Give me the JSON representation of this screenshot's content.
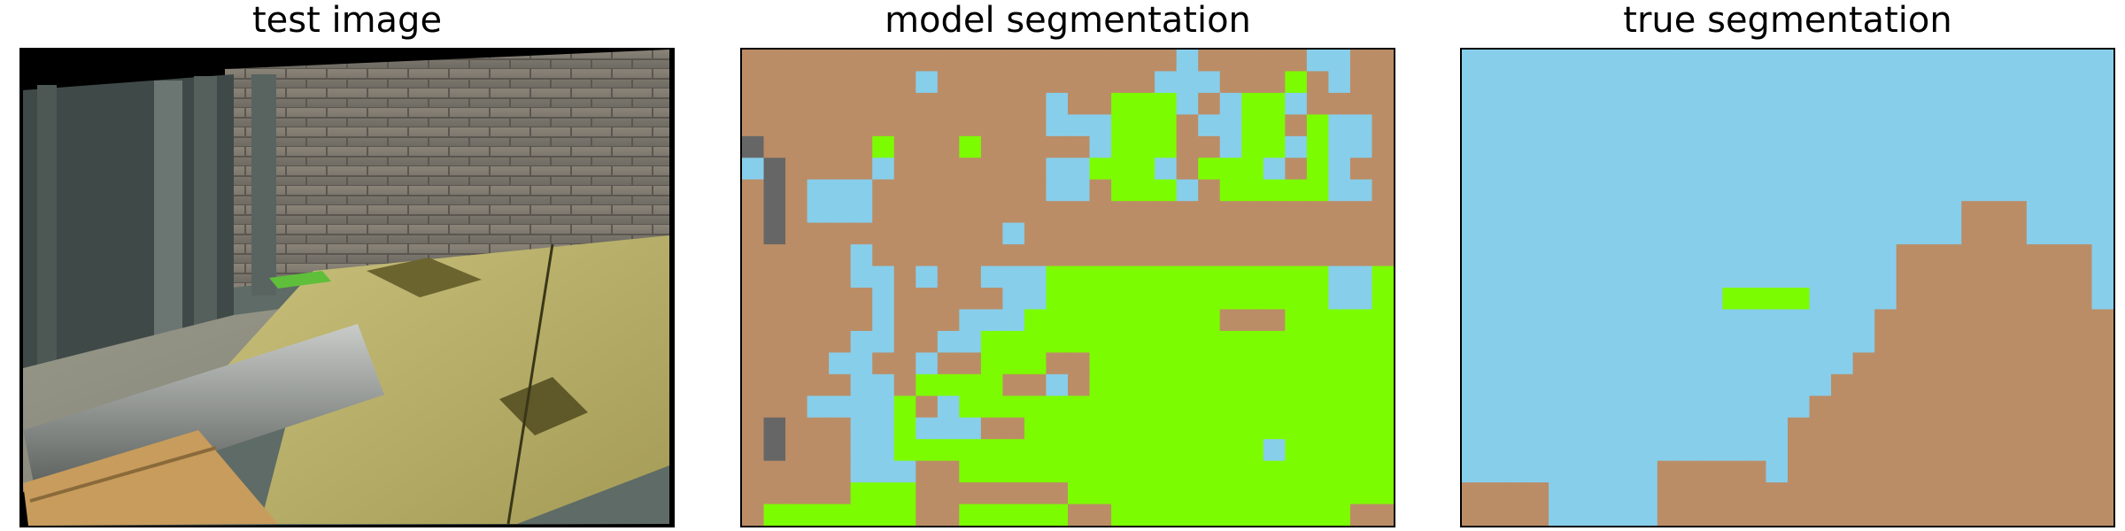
{
  "panels": [
    {
      "title": "test image"
    },
    {
      "title": "model segmentation"
    },
    {
      "title": "true segmentation"
    }
  ],
  "colors": {
    "dirt": "#bb8d66",
    "sky": "#87ceeb",
    "grass": "#7cfc00",
    "rock": "#666666",
    "border": "#000000",
    "photo_frame": "#000000"
  },
  "segmentation_grid": {
    "rows": 22,
    "cols": 30
  },
  "model_segmentation": [
    "DDDDDDDDDDDDDDDDDDDDSDDDDDSSDD",
    "DDDDDDDDSDDDDDDDDDDSSSDDDGDSDD",
    "DDDDDDDDDDDDDDSDDGGGSDSGGSDDDD",
    "DDDDDDDDDDDDDDSSSGGGDSSGGDGSSD",
    "RDDDDDGDDDGDDDDDSGGGDDSGGSGSSD",
    "SRDDDDSDDDDDDDSSGGGSDGGGSDGSDD",
    "DRDSSSDDDDDDDDSSDGGGSDGGGGGSSD",
    "DRDSSSDDDDDDDDDDDDDDDDDDDDDDDD",
    "DRDDDDDDDDDDSDDDDDDDDDDDDDDDDD",
    "DDDDDSDDDDDDDDDDDDDDDDDDDDDDDD",
    "DDDDDSSDSDDSSSGGGGGGGGGGGGGSSG",
    "DDDDDDSDDDDDSSGGGGGGGGGGGGGSSG",
    "DDDDDDSDDDSSSGGGGGGGGGDDDGGGGG",
    "DDDDDSSDDSSGGGGGGGGGGGGGGGGGGG",
    "DDDDSSDDSDDGGGDDGGGGGGGGGGGGGG",
    "DDDDDSSDGGGGDDSDGGGGGGGGGGGGGG",
    "DDDSSSSGDSGGGGGGGGGGGGGGGGGGGG",
    "DRDDDSSGSSSDDGGGGGGGGGGGGGGGGG",
    "DRDDDSSGGGGGGGGGGGGGGGGGSGGGGG",
    "DDDDDSSSDDGGGGGGGGGGGGGGGGGGGG",
    "DDDDDGGGDDDDDDDGGGGGGGGGGGGGGG",
    "DGGGGGGGDDGGGGGDDGGGGGGGGGGGDD"
  ],
  "true_segmentation": [
    "SSSSSSSSSSSSSSSSSSSSSSSSSSSSSS",
    "SSSSSSSSSSSSSSSSSSSSSSSSSSSSSS",
    "SSSSSSSSSSSSSSSSSSSSSSSSSSSSSS",
    "SSSSSSSSSSSSSSSSSSSSSSSSSSSSSS",
    "SSSSSSSSSSSSSSSSSSSSSSSSSSSSSS",
    "SSSSSSSSSSSSSSSSSSSSSSSSSSSSSS",
    "SSSSSSSSSSSSSSSSSSSSSSSSSSSSSS",
    "SSSSSSSSSSSSSSSSSSSSSSSDDDSSSS",
    "SSSSSSSSSSSSSSSSSSSSSSSDDDSSSS",
    "SSSSSSSSSSSSSSSSSSSSDDDDDDDDDS",
    "SSSSSSSSSSSSSSSSSSSSDDDDDDDDDS",
    "SSSSSSSSSSSSGGGGSSSSDDDDDDDDDS",
    "SSSSSSSSSSSSSSSSSSSDDDDDDDDDDD",
    "SSSSSSSSSSSSSSSSSSSDDDDDDDDDDD",
    "SSSSSSSSSSSSSSSSSSDDDDDDDDDDDD",
    "SSSSSSSSSSSSSSSSSDDDDDDDDDDDDD",
    "SSSSSSSSSSSSSSSSDDDDDDDDDDDDDD",
    "SSSSSSSSSSSSSSSDDDDDDDDDDDDDDD",
    "SSSSSSSSSSSSSSSDDDDDDDDDDDDDDD",
    "SSSSSSSSSDDDDDSDDDDDDDDDDDDDDD",
    "DDDDSSSSSDDDDDDDDDDDDDDDDDDDDD",
    "DDDDSSSSSDDDDDDDDDDDDDDDDDDDDD"
  ],
  "legend_codes": {
    "D": "dirt",
    "S": "sky",
    "G": "grass",
    "R": "rock"
  }
}
